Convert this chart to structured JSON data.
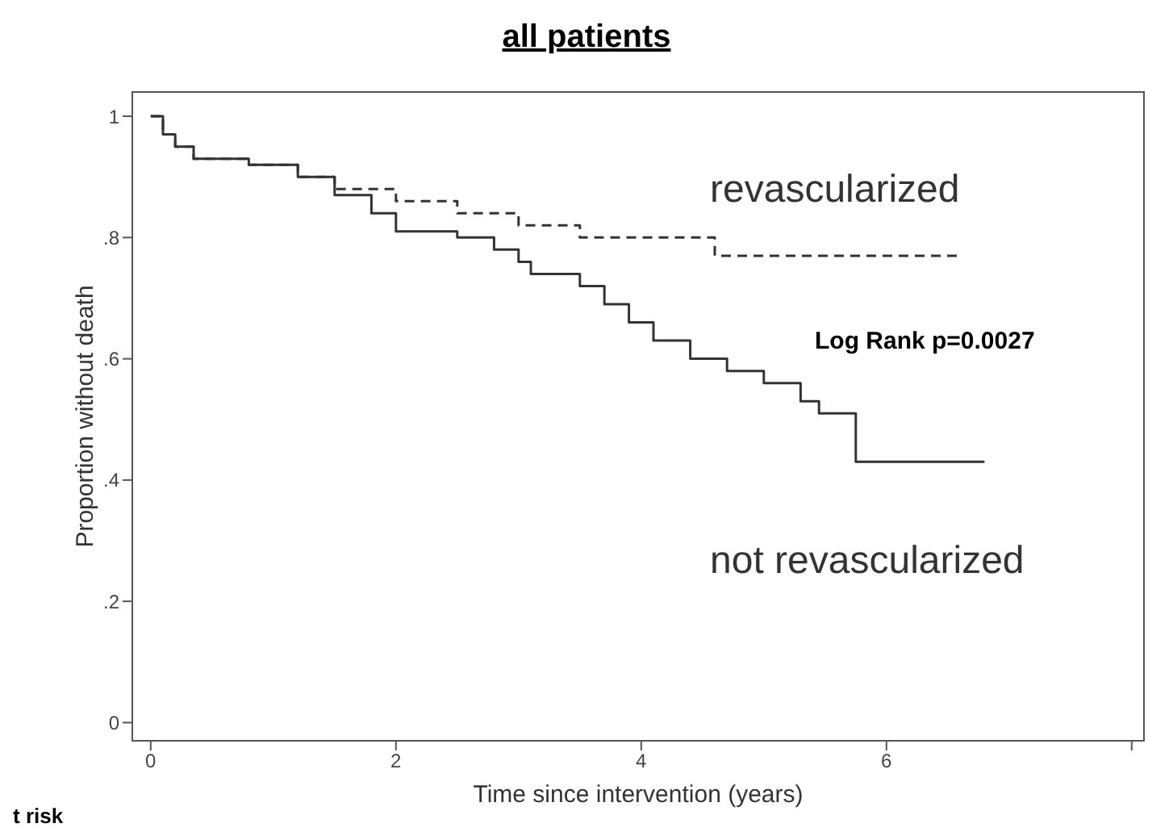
{
  "chart_data": {
    "type": "step",
    "title": "all patients",
    "xlabel": "Time since intervention (years)",
    "ylabel": "Proportion without death",
    "xlim": [
      -0.15,
      8.1
    ],
    "xticks": [
      0,
      2,
      4,
      6,
      {
        "value": 8,
        "label": null
      }
    ],
    "ylim": [
      -0.03,
      1.04
    ],
    "yticks": [
      0,
      {
        "value": 0.2,
        "label": ".2"
      },
      {
        "value": 0.4,
        "label": ".4"
      },
      {
        "value": 0.6,
        "label": ".6"
      },
      {
        "value": 0.8,
        "label": ".8"
      },
      1
    ],
    "grid": false,
    "legend": false,
    "marker": "none",
    "series": [
      {
        "name": "revascularized",
        "color": "#333333",
        "line_style": "dashed",
        "x": [
          0,
          0.1,
          0.2,
          0.35,
          0.8,
          1.2,
          1.5,
          2.0,
          2.5,
          3.0,
          3.5,
          4.6,
          6.6
        ],
        "values": [
          1,
          0.97,
          0.95,
          0.93,
          0.92,
          0.9,
          0.88,
          0.86,
          0.84,
          0.82,
          0.8,
          0.77,
          0.77
        ]
      },
      {
        "name": "not revascularized",
        "color": "#333333",
        "line_style": "solid",
        "x": [
          0,
          0.1,
          0.2,
          0.35,
          0.8,
          1.2,
          1.5,
          1.8,
          2.0,
          2.5,
          2.8,
          3.0,
          3.1,
          3.5,
          3.7,
          3.9,
          4.1,
          4.4,
          4.7,
          5.0,
          5.3,
          5.45,
          5.75,
          6.8
        ],
        "values": [
          1,
          0.97,
          0.95,
          0.93,
          0.92,
          0.9,
          0.87,
          0.84,
          0.81,
          0.8,
          0.78,
          0.76,
          0.74,
          0.72,
          0.69,
          0.66,
          0.63,
          0.6,
          0.58,
          0.56,
          0.53,
          0.51,
          0.43,
          0.43
        ]
      }
    ],
    "annotations": [
      "Log Rank p=0.0027",
      "t risk"
    ]
  }
}
